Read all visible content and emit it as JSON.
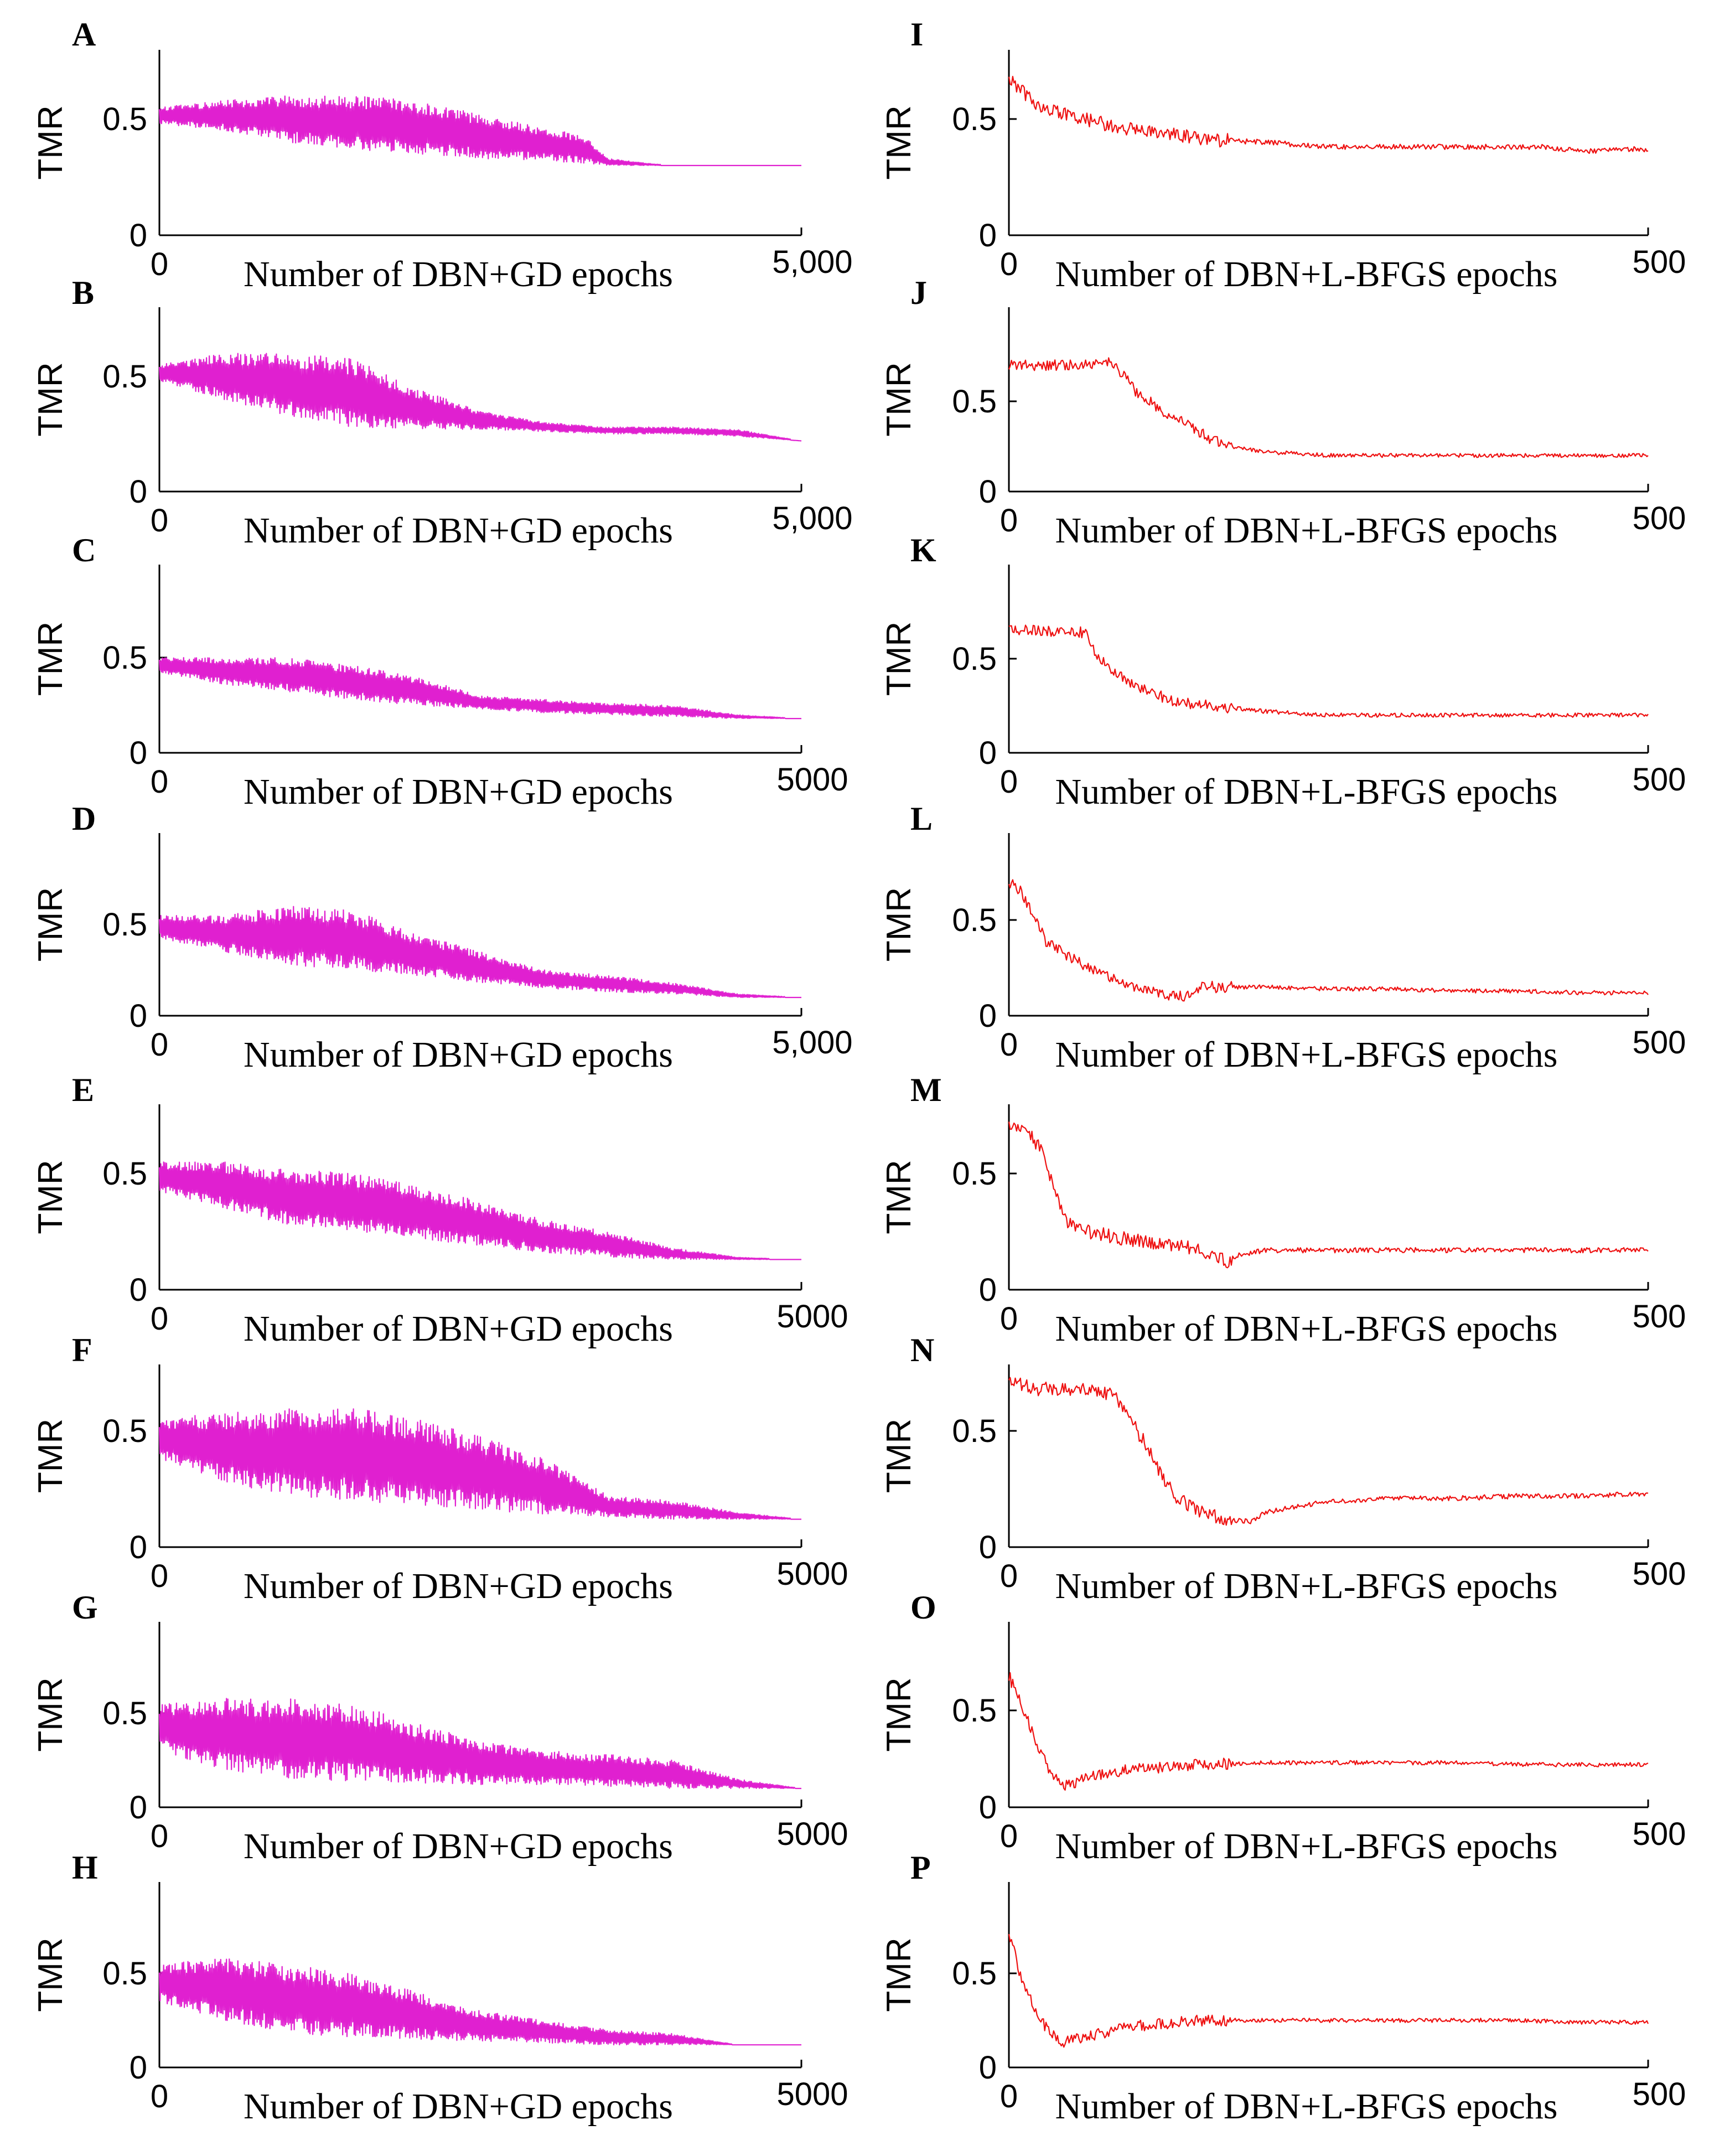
{
  "chart_data": [
    {
      "panel": "A",
      "type": "line",
      "ylabel": "TMR",
      "xlabel": "Number of DBN+GD epochs",
      "x_tick_labels": [
        "0",
        "5,000"
      ],
      "y_tick_labels": [
        "0",
        "0.5"
      ],
      "xlim": [
        0,
        5000
      ],
      "ylim": [
        0,
        0.8
      ],
      "color": "#e020d0",
      "oscillating": true,
      "x": [
        0,
        500,
        1000,
        1500,
        2000,
        2500,
        3000,
        3300,
        3500,
        3800,
        4000,
        5000
      ],
      "upper": [
        0.55,
        0.58,
        0.6,
        0.6,
        0.58,
        0.52,
        0.46,
        0.43,
        0.33,
        0.31,
        0.3,
        0.3
      ],
      "lower": [
        0.48,
        0.45,
        0.4,
        0.37,
        0.35,
        0.33,
        0.32,
        0.31,
        0.3,
        0.3,
        0.3,
        0.3
      ]
    },
    {
      "panel": "B",
      "type": "line",
      "ylabel": "TMR",
      "xlabel": "Number of DBN+GD epochs",
      "x_tick_labels": [
        "0",
        "5,000"
      ],
      "y_tick_labels": [
        "0",
        "0.5"
      ],
      "xlim": [
        0,
        5000
      ],
      "ylim": [
        0,
        0.8
      ],
      "color": "#e020d0",
      "oscillating": true,
      "x": [
        0,
        500,
        1000,
        1500,
        2000,
        2500,
        3000,
        3500,
        4000,
        4500,
        5000
      ],
      "upper": [
        0.55,
        0.6,
        0.6,
        0.58,
        0.45,
        0.35,
        0.3,
        0.28,
        0.28,
        0.27,
        0.22
      ],
      "lower": [
        0.48,
        0.4,
        0.33,
        0.28,
        0.27,
        0.27,
        0.26,
        0.25,
        0.25,
        0.24,
        0.22
      ]
    },
    {
      "panel": "C",
      "type": "line",
      "ylabel": "TMR",
      "xlabel": "Number of DBN+GD epochs",
      "x_tick_labels": [
        "0",
        "5000"
      ],
      "y_tick_labels": [
        "0",
        "0.5"
      ],
      "xlim": [
        0,
        5000
      ],
      "ylim": [
        0,
        0.8
      ],
      "color": "#e020d0",
      "oscillating": true,
      "x": [
        0,
        500,
        1000,
        1500,
        2000,
        2500,
        3000,
        3500,
        4000,
        4500,
        5000
      ],
      "upper": [
        0.5,
        0.5,
        0.5,
        0.46,
        0.4,
        0.3,
        0.28,
        0.26,
        0.25,
        0.2,
        0.18
      ],
      "lower": [
        0.42,
        0.36,
        0.32,
        0.28,
        0.25,
        0.23,
        0.21,
        0.2,
        0.19,
        0.18,
        0.18
      ]
    },
    {
      "panel": "D",
      "type": "line",
      "ylabel": "TMR",
      "xlabel": "Number of DBN+GD epochs",
      "x_tick_labels": [
        "0",
        "5,000"
      ],
      "y_tick_labels": [
        "0",
        "0.5"
      ],
      "xlim": [
        0,
        5000
      ],
      "ylim": [
        0,
        0.8
      ],
      "color": "#e020d0",
      "oscillating": true,
      "x": [
        0,
        500,
        1000,
        1500,
        2000,
        2500,
        3000,
        3500,
        4000,
        4500,
        5000
      ],
      "upper": [
        0.55,
        0.55,
        0.6,
        0.58,
        0.45,
        0.35,
        0.25,
        0.22,
        0.18,
        0.12,
        0.1
      ],
      "lower": [
        0.42,
        0.35,
        0.28,
        0.25,
        0.22,
        0.18,
        0.15,
        0.13,
        0.12,
        0.1,
        0.1
      ]
    },
    {
      "panel": "E",
      "type": "line",
      "ylabel": "TMR",
      "xlabel": "Number of DBN+GD epochs",
      "x_tick_labels": [
        "0",
        "5000"
      ],
      "y_tick_labels": [
        "0",
        "0.5"
      ],
      "xlim": [
        0,
        5000
      ],
      "ylim": [
        0,
        0.8
      ],
      "color": "#e020d0",
      "oscillating": true,
      "x": [
        0,
        500,
        1000,
        1500,
        2000,
        2500,
        3000,
        3500,
        4000,
        4500,
        5000
      ],
      "upper": [
        0.55,
        0.55,
        0.52,
        0.5,
        0.45,
        0.38,
        0.3,
        0.25,
        0.18,
        0.14,
        0.13
      ],
      "lower": [
        0.42,
        0.35,
        0.28,
        0.25,
        0.22,
        0.19,
        0.16,
        0.14,
        0.13,
        0.13,
        0.13
      ]
    },
    {
      "panel": "F",
      "type": "line",
      "ylabel": "TMR",
      "xlabel": "Number of DBN+GD epochs",
      "x_tick_labels": [
        "0",
        "5000"
      ],
      "y_tick_labels": [
        "0",
        "0.5"
      ],
      "xlim": [
        0,
        5000
      ],
      "ylim": [
        0,
        0.8
      ],
      "color": "#e020d0",
      "oscillating": true,
      "x": [
        0,
        500,
        1000,
        1500,
        2000,
        2500,
        3000,
        3500,
        4000,
        4500,
        5000
      ],
      "upper": [
        0.55,
        0.58,
        0.6,
        0.6,
        0.55,
        0.48,
        0.38,
        0.22,
        0.2,
        0.15,
        0.12
      ],
      "lower": [
        0.38,
        0.28,
        0.22,
        0.2,
        0.18,
        0.16,
        0.14,
        0.13,
        0.12,
        0.12,
        0.12
      ]
    },
    {
      "panel": "G",
      "type": "line",
      "ylabel": "TMR",
      "xlabel": "Number of DBN+GD epochs",
      "x_tick_labels": [
        "0",
        "5000"
      ],
      "y_tick_labels": [
        "0",
        "0.5"
      ],
      "xlim": [
        0,
        5000
      ],
      "ylim": [
        0,
        0.8
      ],
      "color": "#e020d0",
      "oscillating": true,
      "x": [
        0,
        500,
        1000,
        1500,
        2000,
        2500,
        3000,
        3500,
        4000,
        4500,
        5000
      ],
      "upper": [
        0.55,
        0.58,
        0.58,
        0.55,
        0.45,
        0.35,
        0.3,
        0.28,
        0.25,
        0.15,
        0.1
      ],
      "lower": [
        0.3,
        0.2,
        0.15,
        0.14,
        0.13,
        0.12,
        0.12,
        0.11,
        0.1,
        0.1,
        0.1
      ]
    },
    {
      "panel": "H",
      "type": "line",
      "ylabel": "TMR",
      "xlabel": "Number of DBN+GD epochs",
      "x_tick_labels": [
        "0",
        "5000"
      ],
      "y_tick_labels": [
        "0",
        "0.5"
      ],
      "xlim": [
        0,
        5000
      ],
      "ylim": [
        0,
        0.8
      ],
      "color": "#e020d0",
      "oscillating": true,
      "x": [
        0,
        500,
        1000,
        1500,
        2000,
        2500,
        3000,
        3500,
        4000,
        4500,
        5000
      ],
      "upper": [
        0.55,
        0.58,
        0.55,
        0.5,
        0.4,
        0.3,
        0.25,
        0.2,
        0.18,
        0.12,
        0.12
      ],
      "lower": [
        0.35,
        0.25,
        0.18,
        0.16,
        0.15,
        0.14,
        0.13,
        0.12,
        0.12,
        0.12,
        0.12
      ]
    },
    {
      "panel": "I",
      "type": "line",
      "ylabel": "TMR",
      "xlabel": "Number of DBN+L-BFGS epochs",
      "x_tick_labels": [
        "0",
        "500"
      ],
      "y_tick_labels": [
        "0",
        "0.5"
      ],
      "xlim": [
        0,
        500
      ],
      "ylim": [
        0,
        0.8
      ],
      "color": "#ee1111",
      "oscillating": false,
      "x": [
        0,
        10,
        25,
        40,
        60,
        80,
        100,
        130,
        160,
        200,
        250,
        300,
        350,
        380,
        420,
        450,
        480,
        500
      ],
      "y": [
        0.68,
        0.62,
        0.55,
        0.53,
        0.5,
        0.47,
        0.45,
        0.43,
        0.41,
        0.4,
        0.38,
        0.38,
        0.38,
        0.38,
        0.38,
        0.36,
        0.37,
        0.37
      ]
    },
    {
      "panel": "J",
      "type": "line",
      "ylabel": "TMR",
      "xlabel": "Number of DBN+L-BFGS epochs",
      "x_tick_labels": [
        "0",
        "500"
      ],
      "y_tick_labels": [
        "0",
        "0.5"
      ],
      "xlim": [
        0,
        500
      ],
      "ylim": [
        0,
        0.8
      ],
      "color": "#ee1111",
      "oscillating": false,
      "x": [
        0,
        30,
        60,
        80,
        85,
        100,
        120,
        140,
        160,
        180,
        200,
        250,
        300,
        350,
        400,
        450,
        500
      ],
      "y": [
        0.7,
        0.7,
        0.7,
        0.72,
        0.68,
        0.55,
        0.45,
        0.37,
        0.28,
        0.24,
        0.22,
        0.2,
        0.2,
        0.2,
        0.2,
        0.2,
        0.2
      ]
    },
    {
      "panel": "K",
      "type": "line",
      "ylabel": "TMR",
      "xlabel": "Number of DBN+L-BFGS epochs",
      "x_tick_labels": [
        "0",
        "500"
      ],
      "y_tick_labels": [
        "0",
        "0.5"
      ],
      "xlim": [
        0,
        500
      ],
      "ylim": [
        0,
        0.8
      ],
      "color": "#ee1111",
      "oscillating": false,
      "x": [
        0,
        30,
        60,
        65,
        80,
        100,
        130,
        160,
        200,
        250,
        300,
        350,
        400,
        450,
        500
      ],
      "y": [
        0.66,
        0.65,
        0.64,
        0.55,
        0.45,
        0.35,
        0.27,
        0.25,
        0.22,
        0.2,
        0.2,
        0.2,
        0.2,
        0.2,
        0.2
      ]
    },
    {
      "panel": "L",
      "type": "line",
      "ylabel": "TMR",
      "xlabel": "Number of DBN+L-BFGS epochs",
      "x_tick_labels": [
        "0",
        "500"
      ],
      "y_tick_labels": [
        "0",
        "0.5"
      ],
      "xlim": [
        0,
        500
      ],
      "ylim": [
        0,
        0.8
      ],
      "color": "#ee1111",
      "oscillating": false,
      "x": [
        0,
        10,
        20,
        30,
        50,
        70,
        90,
        110,
        130,
        140,
        150,
        200,
        250,
        300,
        350,
        400,
        450,
        500
      ],
      "y": [
        0.7,
        0.65,
        0.5,
        0.38,
        0.3,
        0.22,
        0.17,
        0.13,
        0.1,
        0.1,
        0.15,
        0.15,
        0.14,
        0.14,
        0.13,
        0.13,
        0.12,
        0.12
      ]
    },
    {
      "panel": "M",
      "type": "line",
      "ylabel": "TMR",
      "xlabel": "Number of DBN+L-BFGS epochs",
      "x_tick_labels": [
        "0",
        "500"
      ],
      "y_tick_labels": [
        "0",
        "0.5"
      ],
      "xlim": [
        0,
        500
      ],
      "ylim": [
        0,
        0.8
      ],
      "color": "#ee1111",
      "oscillating": false,
      "x": [
        0,
        15,
        25,
        35,
        45,
        60,
        80,
        100,
        120,
        140,
        160,
        170,
        180,
        200,
        250,
        300,
        350,
        400,
        450,
        500
      ],
      "y": [
        0.7,
        0.68,
        0.6,
        0.45,
        0.3,
        0.25,
        0.23,
        0.21,
        0.2,
        0.18,
        0.15,
        0.12,
        0.15,
        0.17,
        0.17,
        0.17,
        0.17,
        0.17,
        0.17,
        0.17
      ]
    },
    {
      "panel": "N",
      "type": "line",
      "ylabel": "TMR",
      "xlabel": "Number of DBN+L-BFGS epochs",
      "x_tick_labels": [
        "0",
        "500"
      ],
      "y_tick_labels": [
        "0",
        "0.5"
      ],
      "xlim": [
        0,
        500
      ],
      "ylim": [
        0,
        0.8
      ],
      "color": "#ee1111",
      "oscillating": false,
      "x": [
        0,
        20,
        40,
        60,
        80,
        90,
        100,
        110,
        120,
        130,
        150,
        170,
        190,
        200,
        230,
        260,
        300,
        350,
        400,
        450,
        500
      ],
      "y": [
        0.72,
        0.68,
        0.68,
        0.68,
        0.66,
        0.6,
        0.5,
        0.42,
        0.3,
        0.22,
        0.15,
        0.12,
        0.11,
        0.15,
        0.18,
        0.2,
        0.21,
        0.21,
        0.22,
        0.22,
        0.23
      ]
    },
    {
      "panel": "O",
      "type": "line",
      "ylabel": "TMR",
      "xlabel": "Number of DBN+L-BFGS epochs",
      "x_tick_labels": [
        "0",
        "500"
      ],
      "y_tick_labels": [
        "0",
        "0.5"
      ],
      "xlim": [
        0,
        500
      ],
      "ylim": [
        0,
        0.8
      ],
      "color": "#ee1111",
      "oscillating": false,
      "x": [
        0,
        5,
        15,
        25,
        35,
        45,
        60,
        80,
        100,
        150,
        200,
        250,
        300,
        350,
        400,
        450,
        500
      ],
      "y": [
        0.68,
        0.6,
        0.45,
        0.28,
        0.15,
        0.11,
        0.15,
        0.18,
        0.2,
        0.22,
        0.23,
        0.23,
        0.23,
        0.23,
        0.22,
        0.22,
        0.22
      ]
    },
    {
      "panel": "P",
      "type": "line",
      "ylabel": "TMR",
      "xlabel": "Number of DBN+L-BFGS epochs",
      "x_tick_labels": [
        "0",
        "500"
      ],
      "y_tick_labels": [
        "0",
        "0.5"
      ],
      "xlim": [
        0,
        500
      ],
      "ylim": [
        0,
        0.8
      ],
      "color": "#ee1111",
      "oscillating": false,
      "x": [
        0,
        5,
        10,
        20,
        30,
        40,
        50,
        70,
        100,
        150,
        200,
        250,
        300,
        350,
        400,
        450,
        500
      ],
      "y": [
        0.7,
        0.6,
        0.45,
        0.32,
        0.2,
        0.13,
        0.15,
        0.18,
        0.22,
        0.25,
        0.25,
        0.25,
        0.25,
        0.25,
        0.25,
        0.24,
        0.24
      ]
    }
  ]
}
